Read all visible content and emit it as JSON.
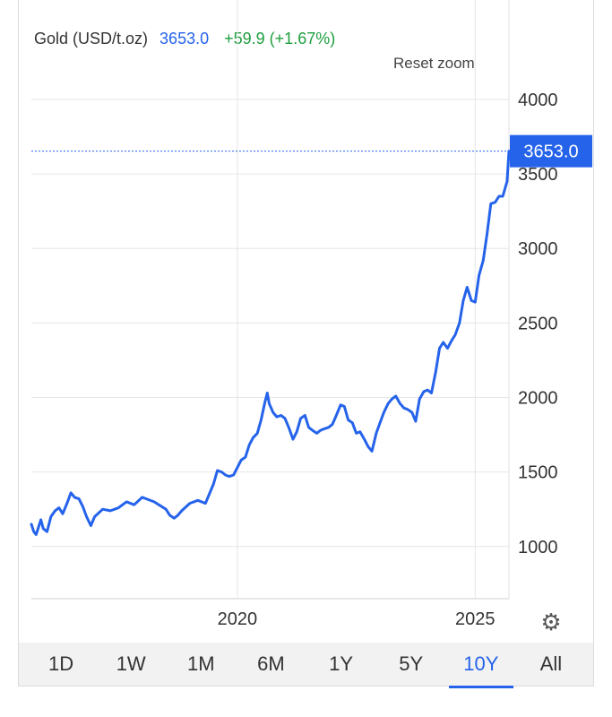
{
  "header": {
    "instrument": "Gold (USD/t.oz)",
    "price": "3653.0",
    "change": "+59.9 (+1.67%)"
  },
  "controls": {
    "reset_zoom": "Reset zoom",
    "settings_icon": "gear-icon"
  },
  "ranges": [
    {
      "label": "1D",
      "active": false
    },
    {
      "label": "1W",
      "active": false
    },
    {
      "label": "1M",
      "active": false
    },
    {
      "label": "6M",
      "active": false
    },
    {
      "label": "1Y",
      "active": false
    },
    {
      "label": "5Y",
      "active": false
    },
    {
      "label": "10Y",
      "active": true
    },
    {
      "label": "All",
      "active": false
    }
  ],
  "colors": {
    "line": "#2563eb",
    "badge": "#2563eb",
    "grid": "#e6e6e6",
    "up": "#1e9e3e"
  },
  "chart_data": {
    "type": "line",
    "title": "Gold (USD/t.oz)",
    "xlabel": "",
    "ylabel": "",
    "y_ticks": [
      1000,
      1500,
      2000,
      2500,
      3000,
      3500,
      4000
    ],
    "x_ticks": [
      {
        "label": "2020",
        "x": 2020.0
      },
      {
        "label": "2025",
        "x": 2025.0
      }
    ],
    "xlim": [
      2015.67,
      2025.71
    ],
    "ylim": [
      650,
      4150
    ],
    "last_value": 3653.0,
    "last_value_label": "3653.0",
    "grid": true,
    "series": [
      {
        "x": [
          2015.67,
          2015.72,
          2015.77,
          2015.82,
          2015.87,
          2015.92,
          2016.0,
          2016.08,
          2016.17,
          2016.25,
          2016.33,
          2016.42,
          2016.5,
          2016.58,
          2016.67,
          2016.75,
          2016.83,
          2016.92,
          2017.0,
          2017.17,
          2017.33,
          2017.5,
          2017.67,
          2017.83,
          2018.0,
          2018.25,
          2018.5,
          2018.58,
          2018.67,
          2018.75,
          2018.83,
          2019.0,
          2019.17,
          2019.33,
          2019.5,
          2019.58,
          2019.67,
          2019.75,
          2019.83,
          2019.92,
          2020.0,
          2020.08,
          2020.17,
          2020.25,
          2020.33,
          2020.42,
          2020.5,
          2020.58,
          2020.63,
          2020.67,
          2020.75,
          2020.83,
          2020.92,
          2021.0,
          2021.08,
          2021.17,
          2021.25,
          2021.33,
          2021.42,
          2021.5,
          2021.58,
          2021.67,
          2021.75,
          2021.83,
          2021.92,
          2022.0,
          2022.08,
          2022.17,
          2022.25,
          2022.33,
          2022.42,
          2022.5,
          2022.58,
          2022.67,
          2022.75,
          2022.83,
          2022.92,
          2023.0,
          2023.08,
          2023.17,
          2023.25,
          2023.33,
          2023.42,
          2023.5,
          2023.58,
          2023.67,
          2023.75,
          2023.83,
          2023.92,
          2024.0,
          2024.08,
          2024.17,
          2024.25,
          2024.33,
          2024.42,
          2024.5,
          2024.58,
          2024.67,
          2024.75,
          2024.83,
          2024.92,
          2025.0,
          2025.08,
          2025.17,
          2025.25,
          2025.33,
          2025.42,
          2025.5,
          2025.58,
          2025.67,
          2025.71
        ],
        "y": [
          1150,
          1100,
          1080,
          1130,
          1180,
          1120,
          1100,
          1200,
          1240,
          1260,
          1220,
          1290,
          1360,
          1330,
          1320,
          1270,
          1200,
          1140,
          1200,
          1250,
          1240,
          1260,
          1300,
          1280,
          1330,
          1300,
          1250,
          1210,
          1190,
          1210,
          1240,
          1290,
          1310,
          1290,
          1420,
          1510,
          1500,
          1480,
          1470,
          1480,
          1530,
          1580,
          1600,
          1680,
          1730,
          1760,
          1850,
          1970,
          2030,
          1960,
          1900,
          1870,
          1880,
          1860,
          1800,
          1720,
          1770,
          1860,
          1880,
          1800,
          1780,
          1760,
          1780,
          1790,
          1800,
          1820,
          1880,
          1950,
          1940,
          1850,
          1830,
          1760,
          1770,
          1720,
          1670,
          1640,
          1760,
          1830,
          1900,
          1960,
          1990,
          2010,
          1960,
          1930,
          1920,
          1900,
          1840,
          1990,
          2040,
          2050,
          2030,
          2170,
          2330,
          2370,
          2330,
          2380,
          2420,
          2500,
          2650,
          2740,
          2650,
          2640,
          2820,
          2920,
          3100,
          3300,
          3310,
          3350,
          3350,
          3450,
          3653
        ]
      }
    ]
  }
}
